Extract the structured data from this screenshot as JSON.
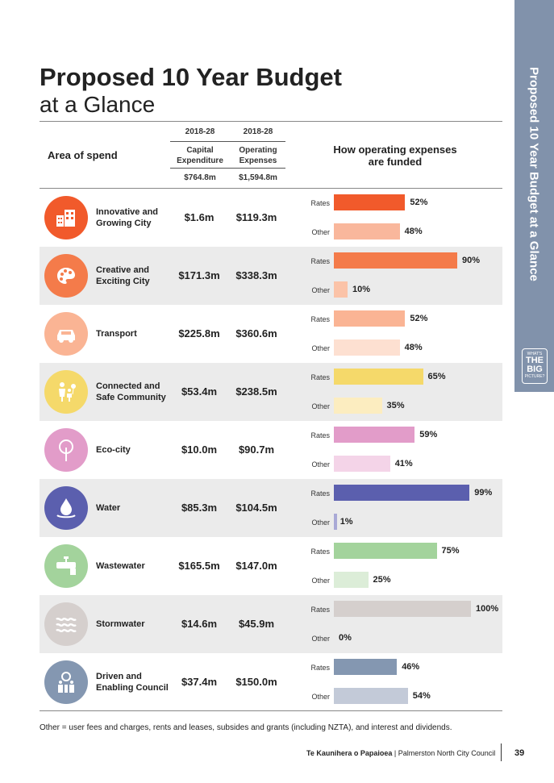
{
  "side_tab": {
    "text": "Proposed 10 Year Budget at a Glance",
    "logo_small": "WHAT'S",
    "logo_big1": "THE",
    "logo_big2": "BIG",
    "logo_small2": "PICTURE?"
  },
  "title": {
    "line1": "Proposed 10 Year Budget",
    "line2": "at a Glance"
  },
  "header": {
    "area": "Area of spend",
    "year_capex": "2018-28",
    "year_opex": "2018-28",
    "capex_label1": "Capital",
    "capex_label2": "Expenditure",
    "opex_label1": "Operating",
    "opex_label2": "Expenses",
    "capex_total": "$764.8m",
    "opex_total": "$1,594.8m",
    "funding_title1": "How operating expenses",
    "funding_title2": "are funded"
  },
  "labels": {
    "rates": "Rates",
    "other": "Other"
  },
  "rows": [
    {
      "area1": "Innovative and",
      "area2": "Growing City",
      "capex": "$1.6m",
      "opex": "$119.3m",
      "rates": 52,
      "other": 48,
      "rates_label": "52%",
      "other_label": "48%",
      "icon": "city-icon",
      "icon_color": "#f15a2b",
      "rates_color": "#f15a2b",
      "other_color": "#f9b79c"
    },
    {
      "area1": "Creative and",
      "area2": "Exciting City",
      "capex": "$171.3m",
      "opex": "$338.3m",
      "rates": 90,
      "other": 10,
      "rates_label": "90%",
      "other_label": "10%",
      "icon": "palette-icon",
      "icon_color": "#f47b4a",
      "rates_color": "#f47b4a",
      "other_color": "#fbc3a8"
    },
    {
      "area1": "Transport",
      "area2": "",
      "capex": "$225.8m",
      "opex": "$360.6m",
      "rates": 52,
      "other": 48,
      "rates_label": "52%",
      "other_label": "48%",
      "icon": "car-icon",
      "icon_color": "#fab494",
      "rates_color": "#fab494",
      "other_color": "#fde0d1"
    },
    {
      "area1": "Connected and",
      "area2": "Safe Community",
      "capex": "$53.4m",
      "opex": "$238.5m",
      "rates": 65,
      "other": 35,
      "rates_label": "65%",
      "other_label": "35%",
      "icon": "family-icon",
      "icon_color": "#f5d96a",
      "rates_color": "#f5d96a",
      "other_color": "#fcedc0"
    },
    {
      "area1": "Eco-city",
      "area2": "",
      "capex": "$10.0m",
      "opex": "$90.7m",
      "rates": 59,
      "other": 41,
      "rates_label": "59%",
      "other_label": "41%",
      "icon": "tree-icon",
      "icon_color": "#e29cc9",
      "rates_color": "#e29cc9",
      "other_color": "#f4d4e8"
    },
    {
      "area1": "Water",
      "area2": "",
      "capex": "$85.3m",
      "opex": "$104.5m",
      "rates": 99,
      "other": 1,
      "rates_label": "99%",
      "other_label": "1%",
      "icon": "water-drop-icon",
      "icon_color": "#5b5fae",
      "rates_color": "#5b5fae",
      "other_color": "#a9a9d6"
    },
    {
      "area1": "Wastewater",
      "area2": "",
      "capex": "$165.5m",
      "opex": "$147.0m",
      "rates": 75,
      "other": 25,
      "rates_label": "75%",
      "other_label": "25%",
      "icon": "pipe-icon",
      "icon_color": "#a3d39c",
      "rates_color": "#a3d39c",
      "other_color": "#dcedd8"
    },
    {
      "area1": "Stormwater",
      "area2": "",
      "capex": "$14.6m",
      "opex": "$45.9m",
      "rates": 100,
      "other": 0,
      "rates_label": "100%",
      "other_label": "0%",
      "icon": "waves-icon",
      "icon_color": "#d5cfcd",
      "rates_color": "#d5cfcd",
      "other_color": "#ece8e6"
    },
    {
      "area1": "Driven and",
      "area2": "Enabling Council",
      "capex": "$37.4m",
      "opex": "$150.0m",
      "rates": 46,
      "other": 54,
      "rates_label": "46%",
      "other_label": "54%",
      "icon": "council-icon",
      "icon_color": "#8497b1",
      "rates_color": "#8497b1",
      "other_color": "#c3cad8"
    }
  ],
  "note": "Other = user fees and charges, rents and leases, subsides and grants (including NZTA), and interest and dividends.",
  "footer": {
    "maori": "Te Kaunihera o Papaioea",
    "sep": "|",
    "council": "Palmerston North City Council",
    "page": "39"
  }
}
